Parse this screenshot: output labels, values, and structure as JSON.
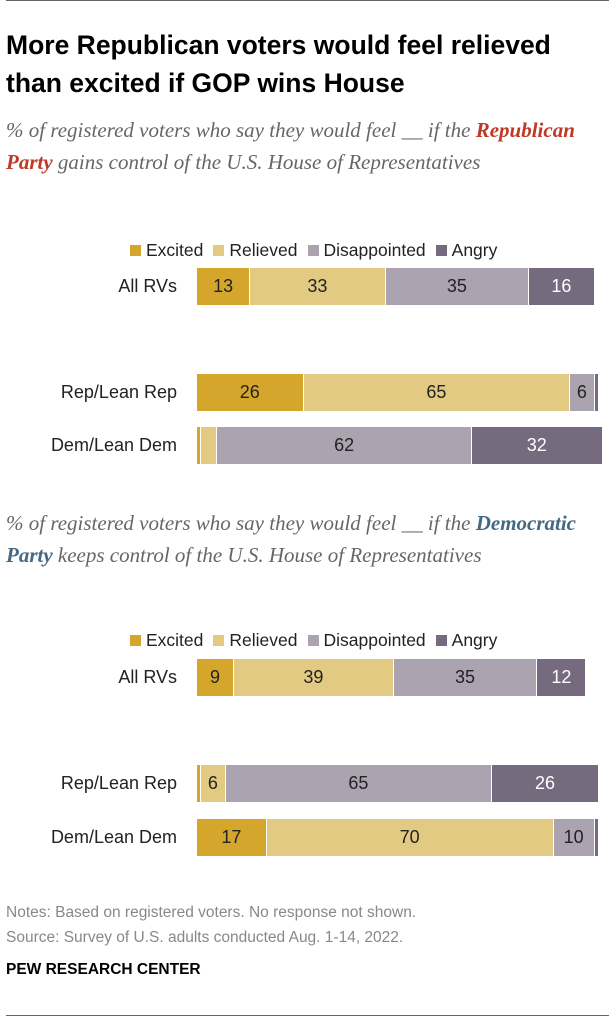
{
  "title": "More Republican voters would feel relieved than excited if GOP wins House",
  "colors": {
    "Excited": "#D4A72C",
    "Relieved": "#E3CA83",
    "Disappointed": "#ABA3B0",
    "Angry": "#756A7E",
    "republican": "#BF3927",
    "democratic": "#436983"
  },
  "chart_data": [
    {
      "type": "bar",
      "orientation": "horizontal-stacked",
      "subtitle_pre": "% of registered voters who say they would feel __ if the ",
      "subtitle_party": "Republican Party",
      "subtitle_post": " gains control of the U.S. House of Representatives",
      "legend": [
        "Excited",
        "Relieved",
        "Disappointed",
        "Angry"
      ],
      "categories": [
        "All RVs",
        "Rep/Lean Rep",
        "Dem/Lean Dem"
      ],
      "series": [
        {
          "name": "Excited",
          "values": [
            13,
            26,
            1
          ]
        },
        {
          "name": "Relieved",
          "values": [
            33,
            65,
            4
          ]
        },
        {
          "name": "Disappointed",
          "values": [
            35,
            6,
            62
          ]
        },
        {
          "name": "Angry",
          "values": [
            16,
            1,
            32
          ]
        }
      ],
      "labels": [
        [
          "13",
          "33",
          "35",
          "16"
        ],
        [
          "26",
          "65",
          "6",
          ""
        ],
        [
          "",
          "",
          "62",
          "32"
        ]
      ]
    },
    {
      "type": "bar",
      "orientation": "horizontal-stacked",
      "subtitle_pre": "% of registered voters who say they would feel __ if the ",
      "subtitle_party": "Democratic Party",
      "subtitle_post": " keeps control of the U.S. House of Representatives",
      "legend": [
        "Excited",
        "Relieved",
        "Disappointed",
        "Angry"
      ],
      "categories": [
        "All RVs",
        "Rep/Lean Rep",
        "Dem/Lean Dem"
      ],
      "series": [
        {
          "name": "Excited",
          "values": [
            9,
            1,
            17
          ]
        },
        {
          "name": "Relieved",
          "values": [
            39,
            6,
            70
          ]
        },
        {
          "name": "Disappointed",
          "values": [
            35,
            65,
            10
          ]
        },
        {
          "name": "Angry",
          "values": [
            12,
            26,
            1
          ]
        }
      ],
      "labels": [
        [
          "9",
          "39",
          "35",
          "12"
        ],
        [
          "",
          "6",
          "65",
          "26"
        ],
        [
          "17",
          "70",
          "10",
          ""
        ]
      ]
    }
  ],
  "notes": "Notes: Based on registered voters. No response not shown.",
  "source": "Source: Survey of U.S. adults conducted Aug. 1-14, 2022.",
  "logo": "PEW RESEARCH CENTER"
}
